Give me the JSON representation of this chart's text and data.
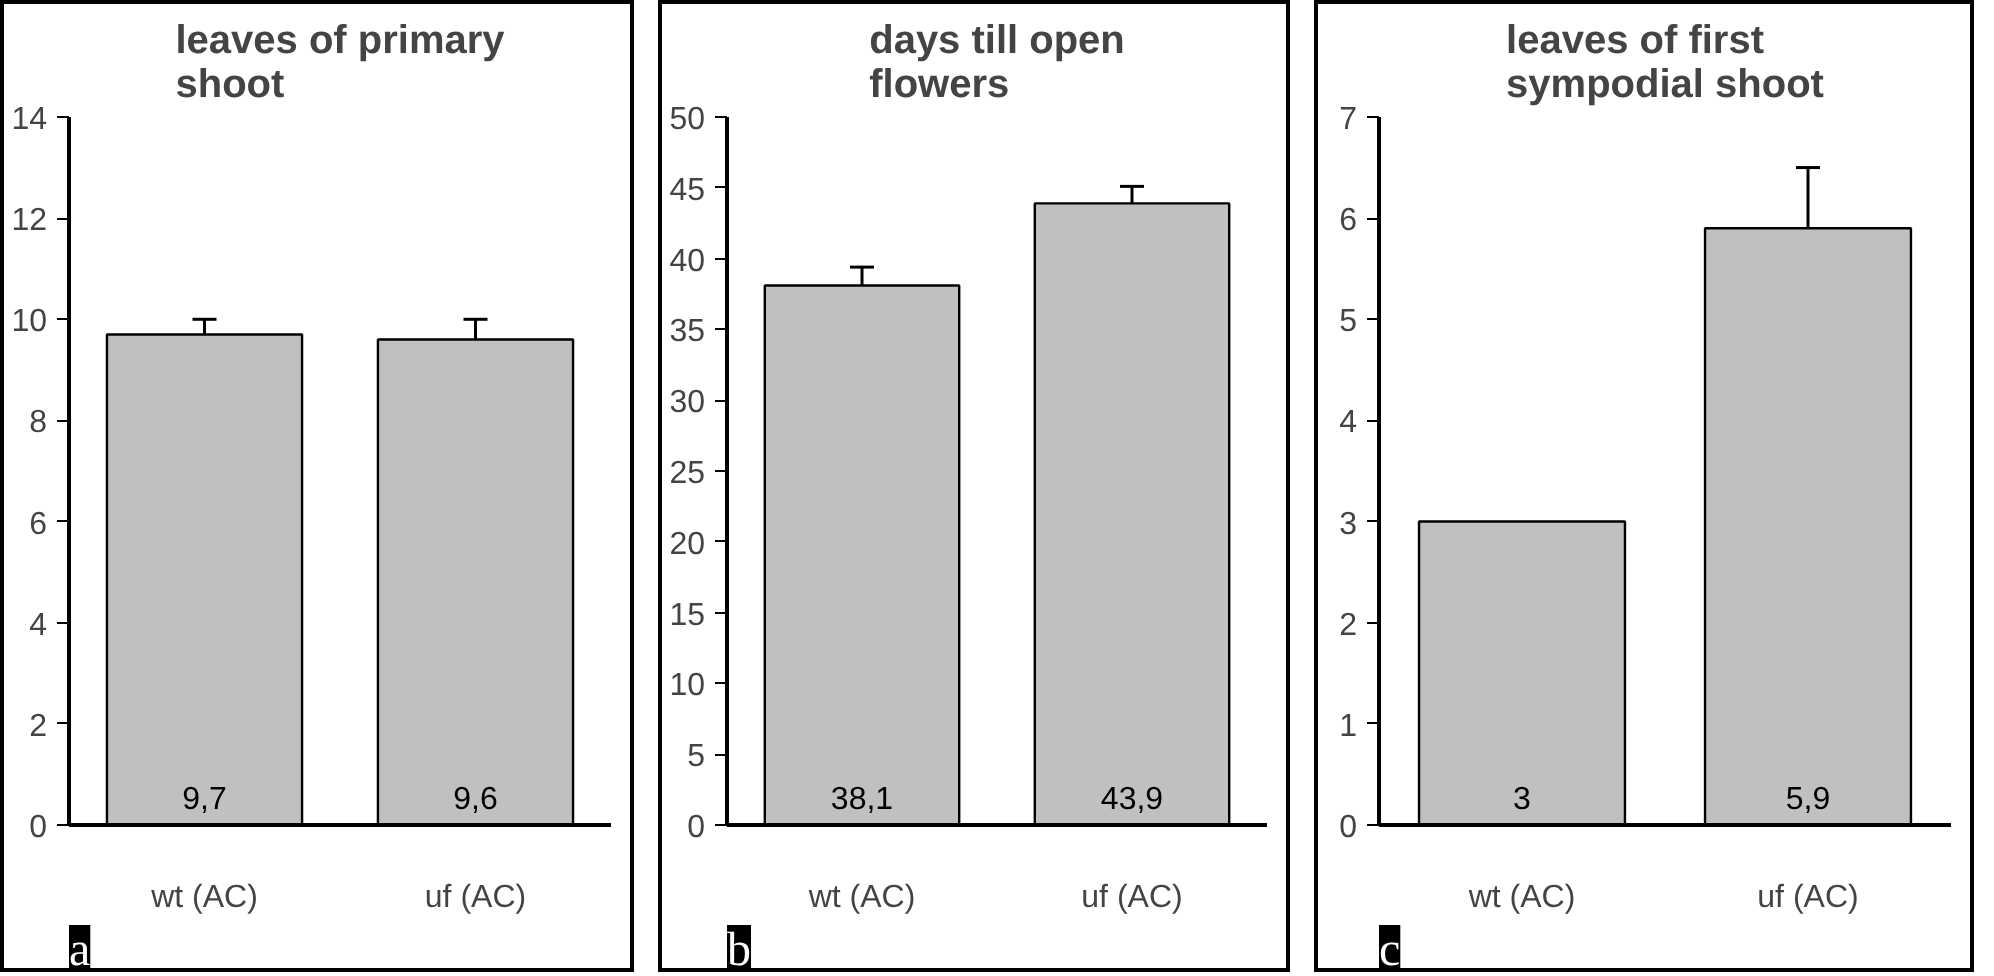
{
  "chart_data": [
    {
      "type": "bar",
      "title": "leaves of primary shoot",
      "categories": [
        "wt (AC)",
        "uf (AC)"
      ],
      "values": [
        9.7,
        9.6
      ],
      "value_labels": [
        "9,7",
        "9,6"
      ],
      "errors": [
        0.3,
        0.4
      ],
      "color": "#c0c0c0",
      "ylim": [
        0,
        14
      ],
      "yticks": [
        0,
        2,
        4,
        6,
        8,
        10,
        12,
        14
      ],
      "annotations": [
        "a"
      ]
    },
    {
      "type": "bar",
      "title": "days till open flowers",
      "categories": [
        "wt (AC)",
        "uf (AC)"
      ],
      "values": [
        38.1,
        43.9
      ],
      "value_labels": [
        "38,1",
        "43,9"
      ],
      "errors": [
        1.3,
        1.2
      ],
      "color": "#c0c0c0",
      "ylim": [
        0,
        50
      ],
      "yticks": [
        0,
        5,
        10,
        15,
        20,
        25,
        30,
        35,
        40,
        45,
        50
      ],
      "annotations": [
        "b"
      ]
    },
    {
      "type": "bar",
      "title": "leaves of first sympodial shoot",
      "categories": [
        "wt (AC)",
        "uf (AC)"
      ],
      "values": [
        3,
        5.9
      ],
      "value_labels": [
        "3",
        "5,9"
      ],
      "errors": [
        null,
        0.6
      ],
      "color": "#c0c0c0",
      "ylim": [
        0,
        7
      ],
      "yticks": [
        0,
        1,
        2,
        3,
        4,
        5,
        6,
        7
      ],
      "annotations": [
        "c"
      ]
    }
  ]
}
